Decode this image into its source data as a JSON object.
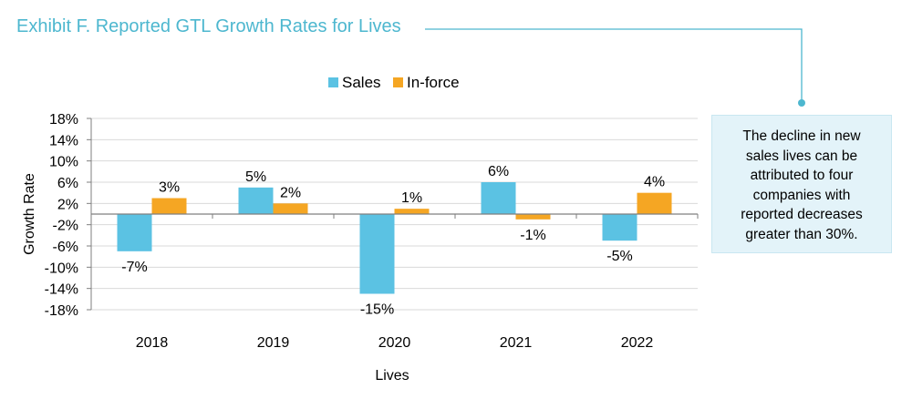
{
  "title": "Exhibit F. Reported GTL Growth Rates for Lives",
  "callout": {
    "text": "The decline in new sales lives can be attributed to four companies with reported decreases greater than 30%."
  },
  "colors": {
    "sales": "#5bc2e3",
    "inforce": "#f5a623",
    "accent": "#4db7cf",
    "grid": "#d9d9d9",
    "axis": "#7f7f7f"
  },
  "chart_data": {
    "type": "bar",
    "categories": [
      "2018",
      "2019",
      "2020",
      "2021",
      "2022"
    ],
    "series": [
      {
        "name": "Sales",
        "values": [
          -7,
          5,
          -15,
          6,
          -5
        ],
        "labels": [
          "-7%",
          "5%",
          "-15%",
          "6%",
          "-5%"
        ]
      },
      {
        "name": "In-force",
        "values": [
          3,
          2,
          1,
          -1,
          4
        ],
        "labels": [
          "3%",
          "2%",
          "1%",
          "-1%",
          "4%"
        ]
      }
    ],
    "xlabel": "Lives",
    "ylabel": "Growth Rate",
    "ylim": [
      -18,
      18
    ],
    "yticks": [
      18,
      14,
      10,
      6,
      2,
      -2,
      -6,
      -10,
      -14,
      -18
    ],
    "ytick_labels": [
      "18%",
      "14%",
      "10%",
      "6%",
      "2%",
      "-2%",
      "-6%",
      "-10%",
      "-14%",
      "-18%"
    ],
    "grid": true,
    "legend": "top-center"
  }
}
